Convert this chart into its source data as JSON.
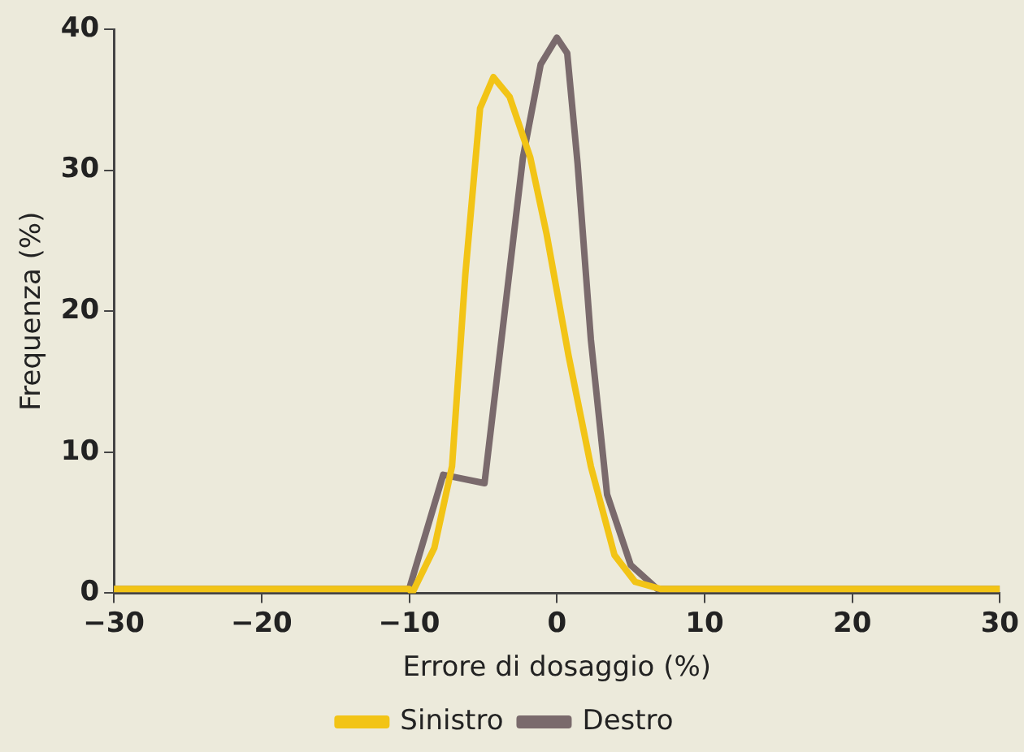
{
  "chart_data": {
    "type": "line",
    "xlabel": "Errore di dosaggio (%)",
    "ylabel": "Frequenza (%)",
    "xlim": [
      -30,
      30
    ],
    "xticks": [
      -30,
      -20,
      -10,
      0,
      10,
      20,
      30
    ],
    "ylim": [
      0,
      40
    ],
    "yticks": [
      0,
      10,
      20,
      30,
      40
    ],
    "grid": false,
    "legend": "bottom",
    "marker": "none",
    "line_style": "solid",
    "series": [
      {
        "name": "Sinistro",
        "color": "#f2c416",
        "x": [
          -30,
          -10,
          -9.8,
          -8.3,
          -7.1,
          -6.2,
          -5.2,
          -4.3,
          -3.2,
          -1.8,
          -0.7,
          0.8,
          2.3,
          3.9,
          5.3,
          7,
          30
        ],
        "values": [
          0.3,
          0.3,
          0,
          3.2,
          9,
          22.6,
          34.4,
          36.6,
          35.2,
          30.9,
          25.5,
          16.8,
          9,
          2.7,
          0.8,
          0.3,
          0.3
        ]
      },
      {
        "name": "Destro",
        "color": "#7a6a6c",
        "x": [
          -30,
          -10,
          -7.7,
          -4.9,
          -2.3,
          -1.1,
          0,
          0.7,
          1.4,
          2.3,
          3.4,
          5,
          6.8,
          30
        ],
        "values": [
          0.3,
          0.3,
          8.4,
          7.8,
          30.9,
          37.5,
          39.4,
          38.3,
          30.5,
          18,
          7,
          2,
          0.3,
          0.3
        ]
      }
    ]
  }
}
